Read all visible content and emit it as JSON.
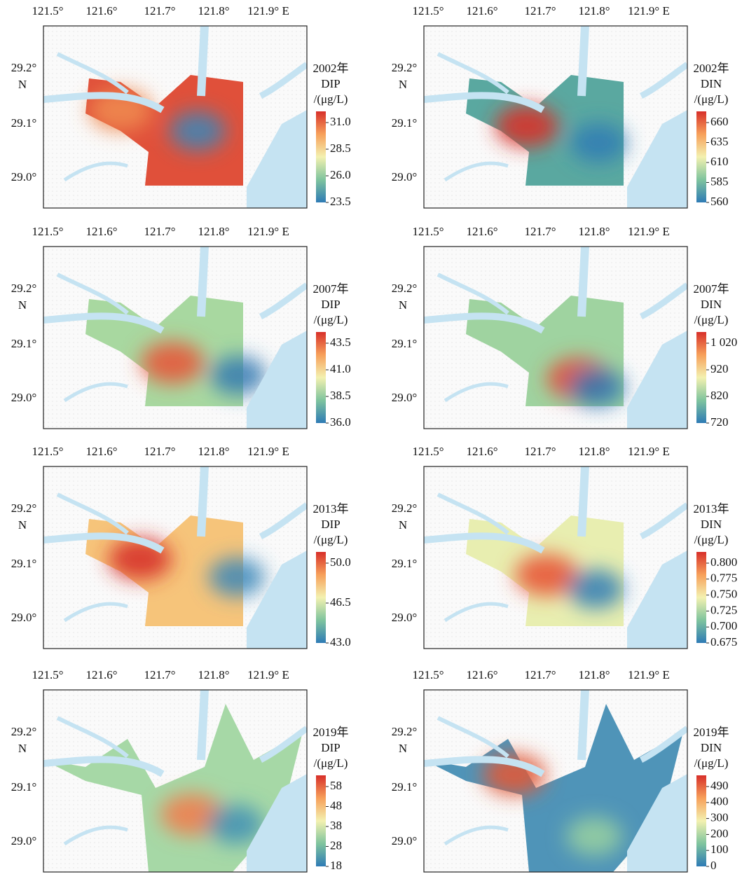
{
  "panels": [
    {
      "year": "2002年",
      "variable": "DIP",
      "unit": "/(μg/L)",
      "colorbar_ticks": [
        "31.0",
        "28.5",
        "26.0",
        "23.5"
      ]
    },
    {
      "year": "2002年",
      "variable": "DIN",
      "unit": "/(μg/L)",
      "colorbar_ticks": [
        "660",
        "635",
        "610",
        "585",
        "560"
      ]
    },
    {
      "year": "2007年",
      "variable": "DIP",
      "unit": "/(μg/L)",
      "colorbar_ticks": [
        "43.5",
        "41.0",
        "38.5",
        "36.0"
      ]
    },
    {
      "year": "2007年",
      "variable": "DIN",
      "unit": "/(μg/L)",
      "colorbar_ticks": [
        "1 020",
        "920",
        "820",
        "720"
      ]
    },
    {
      "year": "2013年",
      "variable": "DIP",
      "unit": "/(μg/L)",
      "colorbar_ticks": [
        "50.0",
        "46.5",
        "43.0"
      ]
    },
    {
      "year": "2013年",
      "variable": "DIN",
      "unit": "/(μg/L)",
      "colorbar_ticks": [
        "0.800",
        "0.775",
        "0.750",
        "0.725",
        "0.700",
        "0.675"
      ]
    },
    {
      "year": "2019年",
      "variable": "DIP",
      "unit": "/(μg/L)",
      "colorbar_ticks": [
        "58",
        "48",
        "38",
        "28",
        "18"
      ]
    },
    {
      "year": "2019年",
      "variable": "DIN",
      "unit": "/(μg/L)",
      "colorbar_ticks": [
        "490",
        "400",
        "300",
        "200",
        "100",
        "0"
      ]
    }
  ],
  "longitude_labels": [
    "121.5°",
    "121.6°",
    "121.7°",
    "121.8°",
    "121.9° E"
  ],
  "latitude_labels": [
    "29.2°",
    "29.1°",
    "29.0°"
  ],
  "latitude_unit": "N"
}
